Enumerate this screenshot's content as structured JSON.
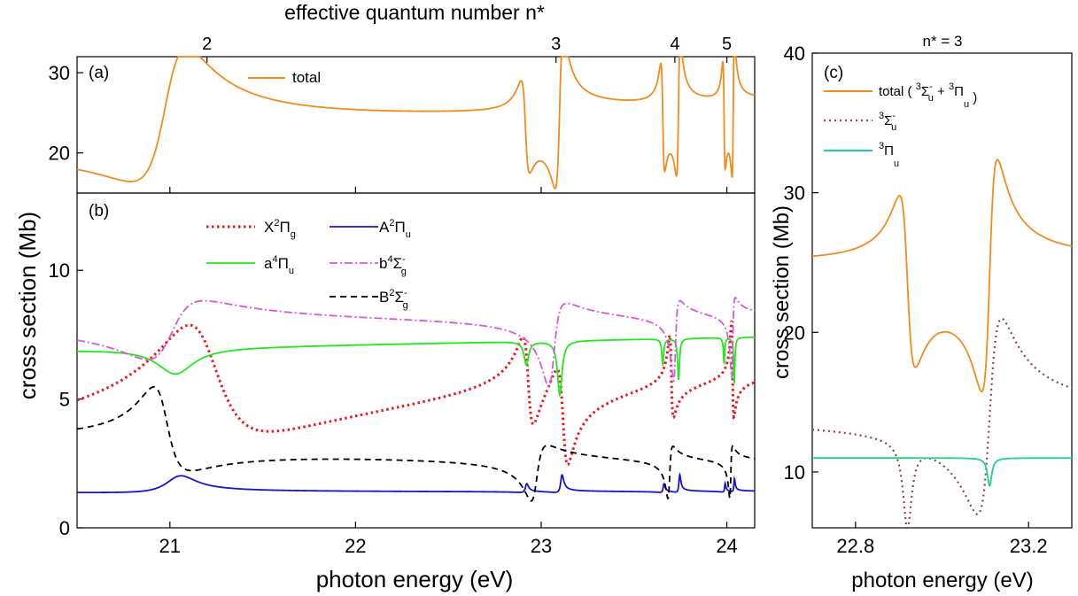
{
  "title_top": "effective quantum number n*",
  "x_label_main": "photon energy (eV)",
  "y_label_main": "cross section (Mb)",
  "panel_labels": {
    "a": "(a)",
    "b": "(b)",
    "c": "(c)"
  },
  "panel_c": {
    "title": "n* = 3",
    "x_label": "photon energy (eV)",
    "y_label": "cross section (Mb)"
  },
  "colors": {
    "total": "#f08c1e",
    "X2Pig": "#e8181e",
    "A2Piu": "#1414d4",
    "a4Piu": "#22e81e",
    "b4Sigg": "#d45ad8",
    "B2Sigg": "#000000",
    "3Sigu": "#8c4646",
    "3Piu": "#1ed28c"
  },
  "legend_a": {
    "total": "total"
  },
  "legend_b": {
    "X2Pig": {
      "base": "X",
      "sup": "2",
      "mid": "Π",
      "sub": "g"
    },
    "A2Piu": {
      "base": "A",
      "sup": "2",
      "mid": "Π",
      "sub": "u"
    },
    "a4Piu": {
      "base": "a",
      "sup": "4",
      "mid": "Π",
      "sub": "u"
    },
    "b4Sigg": {
      "base": "b",
      "sup": "4",
      "mid": "Σ",
      "sub": "g",
      "supr": "-"
    },
    "B2Sigg": {
      "base": "B",
      "sup": "2",
      "mid": "Σ",
      "sub": "g",
      "supr": "-"
    }
  },
  "legend_c": {
    "total_prefix": "total (",
    "s1_sup": "3",
    "s1_mid": "Σ",
    "s1_sub": "u",
    "s1_supr": "-",
    "plus": "+",
    "s2_sup": "3",
    "s2_mid": "Π",
    "s2_sub": "u",
    "total_suffix": ")",
    "sig_sup": "3",
    "sig_mid": "Σ",
    "sig_sub": "u",
    "sig_supr": "-",
    "pi_sup": "3",
    "pi_mid": "Π",
    "pi_sub": "u"
  },
  "chart_data": [
    {
      "panel": "a",
      "type": "line",
      "xlim": [
        20.5,
        24.15
      ],
      "ylim": [
        15,
        32
      ],
      "x_ticks": [
        21,
        22,
        23,
        24
      ],
      "y_ticks": [
        20,
        30
      ],
      "top_axis_ticks": [
        {
          "label": "2",
          "x": 21.2
        },
        {
          "label": "3",
          "x": 23.08
        },
        {
          "label": "4",
          "x": 23.72
        },
        {
          "label": "5",
          "x": 24.0
        }
      ],
      "series": [
        {
          "name": "total",
          "background": {
            "y0": 21.7,
            "slope": 1.1
          },
          "resonances": [
            {
              "x0": 20.99,
              "width": 0.14,
              "q": 1.4,
              "amp": 5.5
            },
            {
              "x0": 22.915,
              "width": 0.022,
              "q": -1.0,
              "amp": 5.5
            },
            {
              "x0": 23.1,
              "width": 0.022,
              "q": 1.1,
              "amp": 8.5
            },
            {
              "x0": 23.655,
              "width": 0.01,
              "q": -1.0,
              "amp": 6.5
            },
            {
              "x0": 23.74,
              "width": 0.01,
              "q": 1.1,
              "amp": 7.5
            },
            {
              "x0": 23.985,
              "width": 0.006,
              "q": -1.0,
              "amp": 6.5
            },
            {
              "x0": 24.035,
              "width": 0.006,
              "q": 1.1,
              "amp": 8.0
            }
          ]
        }
      ]
    },
    {
      "panel": "b",
      "type": "line",
      "xlim": [
        20.5,
        24.15
      ],
      "ylim": [
        0,
        13
      ],
      "x_ticks": [
        21,
        22,
        23,
        24
      ],
      "y_ticks": [
        0,
        5,
        10
      ],
      "series": [
        {
          "name": "X2Πg",
          "background": {
            "y0": 3.7,
            "slope": 0.72
          },
          "resonances": [
            {
              "x0": 21.2,
              "width": 0.2,
              "q": -2.0,
              "amp": 0.9
            },
            {
              "x0": 22.93,
              "width": 0.03,
              "q": -1.0,
              "amp": 1.8
            },
            {
              "x0": 23.12,
              "width": 0.03,
              "q": -0.8,
              "amp": 2.4
            },
            {
              "x0": 23.7,
              "width": 0.01,
              "q": -1.3,
              "amp": 1.2
            },
            {
              "x0": 24.03,
              "width": 0.006,
              "q": -1.3,
              "amp": 1.4
            }
          ]
        },
        {
          "name": "A2Πu",
          "background": {
            "y0": 1.4,
            "slope": 0.0
          },
          "resonances": [
            {
              "x0": 21.04,
              "width": 0.1,
              "q": 5.0,
              "amp": 0.025
            },
            {
              "x0": 22.92,
              "width": 0.01,
              "q": 4.0,
              "amp": 0.02
            },
            {
              "x0": 23.11,
              "width": 0.01,
              "q": 4.0,
              "amp": 0.04
            },
            {
              "x0": 23.66,
              "width": 0.006,
              "q": 4.0,
              "amp": 0.02
            },
            {
              "x0": 23.745,
              "width": 0.006,
              "q": 4.0,
              "amp": 0.04
            },
            {
              "x0": 23.99,
              "width": 0.004,
              "q": 4.0,
              "amp": 0.02
            },
            {
              "x0": 24.04,
              "width": 0.004,
              "q": 4.0,
              "amp": 0.03
            }
          ]
        },
        {
          "name": "a4Πu",
          "background": {
            "y0": 6.9,
            "slope": 0.14
          },
          "resonances": [
            {
              "x0": 21.03,
              "width": 0.12,
              "q": 0.0,
              "amp": 1.0
            },
            {
              "x0": 22.92,
              "width": 0.015,
              "q": 0.0,
              "amp": 0.9
            },
            {
              "x0": 23.1,
              "width": 0.015,
              "q": 0.0,
              "amp": 2.1
            },
            {
              "x0": 23.655,
              "width": 0.006,
              "q": 0.0,
              "amp": 1.0
            },
            {
              "x0": 23.74,
              "width": 0.006,
              "q": 0.0,
              "amp": 1.6
            },
            {
              "x0": 23.985,
              "width": 0.004,
              "q": 0.0,
              "amp": 1.0
            },
            {
              "x0": 24.04,
              "width": 0.004,
              "q": 0.0,
              "amp": 1.8
            }
          ]
        },
        {
          "name": "b4Σg-",
          "background": {
            "y0": 8.0,
            "slope": 0.0
          },
          "resonances": [
            {
              "x0": 21.0,
              "width": 0.15,
              "q": 0.8,
              "amp": 1.4
            },
            {
              "x0": 23.06,
              "width": 0.04,
              "q": 0.5,
              "amp": 2.6
            },
            {
              "x0": 23.72,
              "width": 0.014,
              "q": 0.5,
              "amp": 2.5
            },
            {
              "x0": 24.03,
              "width": 0.008,
              "q": 0.5,
              "amp": 2.5
            }
          ]
        },
        {
          "name": "B2Σg-",
          "background": {
            "y0": 3.3,
            "slope": -0.2
          },
          "resonances": [
            {
              "x0": 20.97,
              "width": 0.09,
              "q": -1.6,
              "amp": 0.9
            },
            {
              "x0": 22.97,
              "width": 0.04,
              "q": 0.6,
              "amp": 1.6
            },
            {
              "x0": 23.69,
              "width": 0.012,
              "q": 0.6,
              "amp": 1.5
            },
            {
              "x0": 24.02,
              "width": 0.007,
              "q": 0.6,
              "amp": 1.5
            }
          ]
        }
      ]
    },
    {
      "panel": "c",
      "type": "line",
      "title": "n* = 3",
      "xlim": [
        22.7,
        23.3
      ],
      "ylim": [
        6,
        40
      ],
      "x_ticks": [
        22.8,
        23.2
      ],
      "y_ticks": [
        10,
        20,
        30,
        40
      ],
      "series": [
        {
          "name": "total (3Σu- + 3Πu)",
          "background": {
            "y0": 25.2,
            "slope": 0.0
          },
          "resonances": [
            {
              "x0": 22.92,
              "width": 0.018,
              "q": -1.0,
              "amp": 6.0
            },
            {
              "x0": 23.11,
              "width": 0.018,
              "q": 1.0,
              "amp": 8.2
            }
          ]
        },
        {
          "name": "3Σu-",
          "background": {
            "y0": 14.0,
            "slope": 0.0
          },
          "resonances": [
            {
              "x0": 22.92,
              "width": 0.012,
              "q": 0.0,
              "amp": 6.1
            },
            {
              "x0": 23.11,
              "width": 0.028,
              "q": 1.0,
              "amp": 7.0
            }
          ]
        },
        {
          "name": "3Πu",
          "background": {
            "y0": 11.0,
            "slope": 0.0
          },
          "resonances": [
            {
              "x0": 23.11,
              "width": 0.006,
              "q": 0.0,
              "amp": 2.0
            }
          ]
        }
      ]
    }
  ]
}
